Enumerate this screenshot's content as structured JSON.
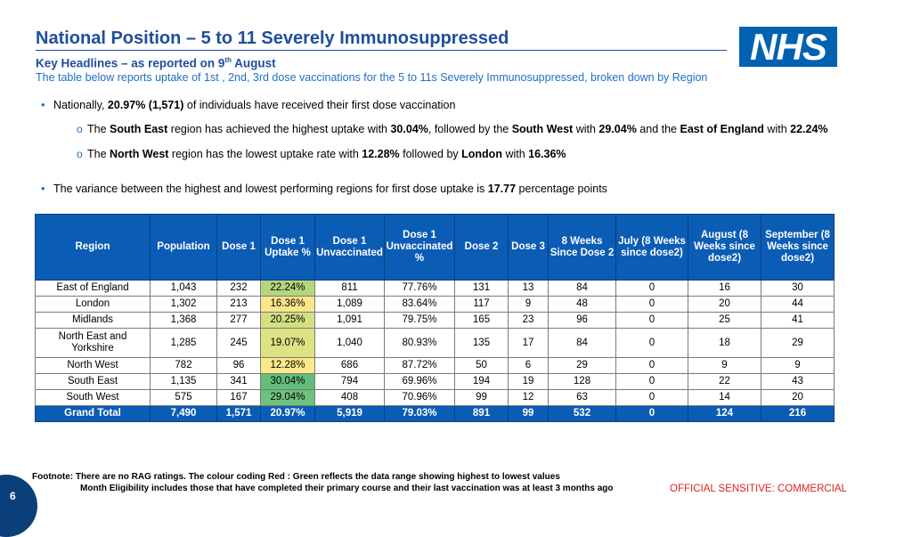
{
  "title": "National Position – 5 to 11 Severely Immunosuppressed",
  "logo_text": "NHS",
  "headline": {
    "text": "Key Headlines – as reported on 9",
    "sup": "th",
    "tail": " August"
  },
  "subtitle": "The table below reports uptake of 1st , 2nd, 3rd dose vaccinations for the 5 to 11s Severely Immunosuppressed, broken down by Region",
  "bullets": {
    "b1": {
      "pre": "Nationally, ",
      "bold": "20.97% (1,571)",
      "post": " of individuals have received their first dose vaccination"
    },
    "b2": {
      "t1": "The ",
      "b1": "South East",
      "t2": " region has achieved the highest uptake with ",
      "b2": "30.04%",
      "t3": ", followed by the ",
      "b3": "South West",
      "t4": " with ",
      "b4": "29.04%",
      "t5": " and the ",
      "b5": "East of England",
      "t6": " with ",
      "b6": "22.24%"
    },
    "b3": {
      "t1": "The ",
      "b1": "North West",
      "t2": " region has the lowest uptake rate with ",
      "b2": "12.28%",
      "t3": " followed by ",
      "b3": "London",
      "t4": " with ",
      "b4": "16.36%"
    },
    "b4": {
      "pre": "The variance between the highest and lowest performing regions for first dose uptake is ",
      "bold": "17.77",
      "post": " percentage points"
    }
  },
  "table": {
    "headers": [
      "Region",
      "Population",
      "Dose 1",
      "Dose 1 Uptake %",
      "Dose 1 Unvaccinated",
      "Dose 1 Unvaccinated %",
      "Dose 2",
      "Dose 3",
      "8 Weeks Since Dose 2",
      "July (8 Weeks since dose2)",
      "August (8 Weeks since dose2)",
      "September (8 Weeks since dose2)"
    ],
    "rows": [
      [
        "East of England",
        "1,043",
        "232",
        "22.24%",
        "811",
        "77.76%",
        "131",
        "13",
        "84",
        "0",
        "16",
        "30"
      ],
      [
        "London",
        "1,302",
        "213",
        "16.36%",
        "1,089",
        "83.64%",
        "117",
        "9",
        "48",
        "0",
        "20",
        "44"
      ],
      [
        "Midlands",
        "1,368",
        "277",
        "20.25%",
        "1,091",
        "79.75%",
        "165",
        "23",
        "96",
        "0",
        "25",
        "41"
      ],
      [
        "North East and Yorkshire",
        "1,285",
        "245",
        "19.07%",
        "1,040",
        "80.93%",
        "135",
        "17",
        "84",
        "0",
        "18",
        "29"
      ],
      [
        "North West",
        "782",
        "96",
        "12.28%",
        "686",
        "87.72%",
        "50",
        "6",
        "29",
        "0",
        "9",
        "9"
      ],
      [
        "South East",
        "1,135",
        "341",
        "30.04%",
        "794",
        "69.96%",
        "194",
        "19",
        "128",
        "0",
        "22",
        "43"
      ],
      [
        "South West",
        "575",
        "167",
        "29.04%",
        "408",
        "70.96%",
        "99",
        "12",
        "63",
        "0",
        "14",
        "20"
      ]
    ],
    "total": [
      "Grand Total",
      "7,490",
      "1,571",
      "20.97%",
      "5,919",
      "79.03%",
      "891",
      "99",
      "532",
      "0",
      "124",
      "216"
    ],
    "uptake_colors": [
      "#b5d67c",
      "#fbe68a",
      "#d4df82",
      "#dde283",
      "#fde989",
      "#63be7b",
      "#6ec27c"
    ]
  },
  "footnote": {
    "line1": "Footnote: There are no RAG ratings. The colour coding Red : Green reflects the data range showing highest to lowest values",
    "line2": "Month Eligibility includes those that have completed their primary course and their last vaccination was at least 3 months ago"
  },
  "classification": "OFFICIAL SENSITIVE: COMMERCIAL",
  "page_number": "6"
}
